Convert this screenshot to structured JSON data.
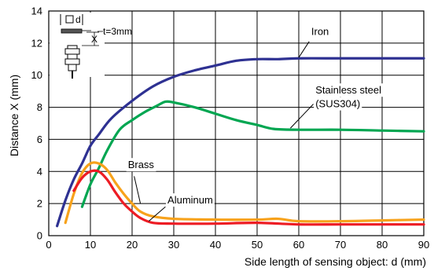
{
  "chart_data": {
    "type": "line",
    "title": "",
    "xlabel": "Side length of sensing object: d (mm)",
    "ylabel": "Distance X (mm)",
    "xlim": [
      0,
      90
    ],
    "ylim": [
      0,
      14
    ],
    "xticks": [
      "0",
      "10",
      "20",
      "30",
      "40",
      "50",
      "60",
      "70",
      "80",
      "90"
    ],
    "yticks": [
      "0",
      "2",
      "4",
      "6",
      "8",
      "10",
      "12",
      "14"
    ],
    "grid": true,
    "series": [
      {
        "name": "Iron",
        "color": "#2e3192",
        "x": [
          2,
          4,
          6,
          8,
          10,
          12,
          15,
          20,
          25,
          30,
          35,
          40,
          45,
          50,
          55,
          60,
          70,
          80,
          90
        ],
        "y": [
          0.6,
          2.2,
          3.5,
          4.5,
          5.6,
          6.3,
          7.3,
          8.4,
          9.3,
          9.9,
          10.3,
          10.6,
          10.9,
          11.0,
          11.0,
          11.05,
          11.05,
          11.05,
          11.05
        ]
      },
      {
        "name": "Stainless steel (SUS304)",
        "color": "#00a651",
        "x": [
          8,
          10,
          12,
          14,
          17,
          20,
          23,
          26,
          28,
          30,
          35,
          40,
          45,
          50,
          54,
          60,
          70,
          80,
          90
        ],
        "y": [
          1.8,
          3.2,
          4.2,
          5.3,
          6.6,
          7.2,
          7.7,
          8.1,
          8.35,
          8.3,
          8.0,
          7.6,
          7.2,
          6.9,
          6.65,
          6.6,
          6.6,
          6.55,
          6.5
        ]
      },
      {
        "name": "Brass",
        "color": "#f7a21b",
        "x": [
          4,
          6,
          8,
          10,
          12,
          14,
          16,
          18,
          20,
          22,
          25,
          30,
          40,
          50,
          55,
          60,
          70,
          80,
          90
        ],
        "y": [
          0.8,
          2.6,
          3.9,
          4.5,
          4.5,
          4.1,
          3.3,
          2.6,
          2.0,
          1.5,
          1.2,
          1.05,
          1.0,
          1.0,
          1.05,
          0.9,
          0.9,
          0.95,
          1.0
        ]
      },
      {
        "name": "Aluminum",
        "color": "#ed1c24",
        "x": [
          6,
          8,
          10,
          12,
          14,
          16,
          18,
          20,
          22,
          25,
          30,
          40,
          50,
          60,
          70,
          80,
          90
        ],
        "y": [
          2.8,
          3.6,
          4.0,
          4.0,
          3.5,
          2.7,
          2.0,
          1.5,
          1.1,
          0.8,
          0.75,
          0.75,
          0.8,
          0.7,
          0.7,
          0.7,
          0.7
        ]
      }
    ],
    "annotations": [
      {
        "text": "Iron",
        "x": 63,
        "y": 12.5
      },
      {
        "text": "Stainless steel",
        "x": 64,
        "y": 8.85
      },
      {
        "text": "(SUS304)",
        "x": 64,
        "y": 8.0
      },
      {
        "text": "Brass",
        "x": 19,
        "y": 4.2
      },
      {
        "text": "Aluminum",
        "x": 28.5,
        "y": 2.0
      }
    ],
    "inset": {
      "d_label": "d",
      "x_label": "X",
      "t_label": "t=3mm"
    }
  }
}
